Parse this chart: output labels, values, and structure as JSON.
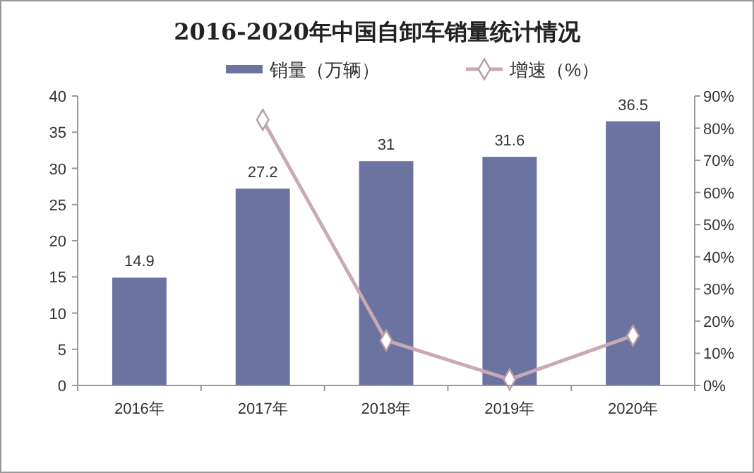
{
  "chart_data": {
    "type": "bar",
    "title": "2016-2020年中国自卸车销量统计情况",
    "categories": [
      "2016年",
      "2017年",
      "2018年",
      "2019年",
      "2020年"
    ],
    "series": [
      {
        "name": "销量（万辆）",
        "color": "#6b74a0",
        "values": [
          14.9,
          27.2,
          31,
          31.6,
          36.5
        ],
        "value_labels": [
          "14.9",
          "27.2",
          "31",
          "31.6",
          "36.5"
        ]
      },
      {
        "name": "增速（%）",
        "type": "line",
        "axis": "y2",
        "color": "#c9a9b5",
        "marker": "diamond",
        "values": [
          null,
          82.6,
          14,
          1.9,
          15.5
        ]
      }
    ],
    "ylim": [
      0,
      40
    ],
    "yticks": [
      0,
      5,
      10,
      15,
      20,
      25,
      30,
      35,
      40
    ],
    "y2lim": [
      0,
      90
    ],
    "y2ticks": [
      {
        "value": 0,
        "label": "0%"
      },
      {
        "value": 10,
        "label": "10%"
      },
      {
        "value": 20,
        "label": "20%"
      },
      {
        "value": 30,
        "label": "30%"
      },
      {
        "value": 40,
        "label": "40%"
      },
      {
        "value": 50,
        "label": "50%"
      },
      {
        "value": 60,
        "label": "60%"
      },
      {
        "value": 70,
        "label": "70%"
      },
      {
        "value": 80,
        "label": "80%"
      },
      {
        "value": 90,
        "label": "90%"
      }
    ],
    "legend": "top"
  }
}
